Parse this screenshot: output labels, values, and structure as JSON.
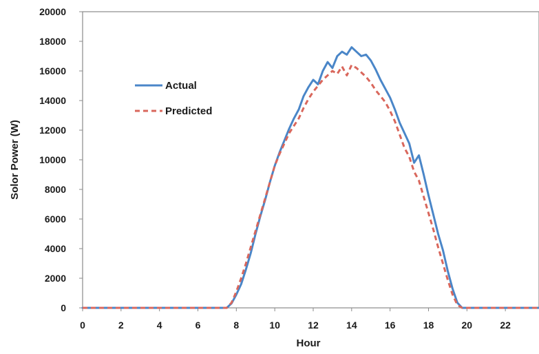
{
  "chart_data": {
    "type": "line",
    "title": "",
    "xlabel": "Hour",
    "ylabel": "Solor Power (W)",
    "xlim": [
      0,
      24
    ],
    "ylim": [
      0,
      20000
    ],
    "x_ticks": [
      0,
      2,
      4,
      6,
      8,
      10,
      12,
      14,
      16,
      18,
      20,
      22
    ],
    "y_ticks": [
      0,
      2000,
      4000,
      6000,
      8000,
      10000,
      12000,
      14000,
      16000,
      18000,
      20000
    ],
    "grid": false,
    "legend_position": "upper-left",
    "series": [
      {
        "name": "Actual",
        "color": "#4a86c8",
        "style": "solid",
        "points": [
          [
            0,
            0
          ],
          [
            7.5,
            0
          ],
          [
            7.75,
            300
          ],
          [
            8,
            900
          ],
          [
            8.25,
            1600
          ],
          [
            8.5,
            2600
          ],
          [
            8.75,
            3700
          ],
          [
            9,
            5000
          ],
          [
            9.25,
            6200
          ],
          [
            9.5,
            7300
          ],
          [
            9.75,
            8500
          ],
          [
            10,
            9600
          ],
          [
            10.25,
            10500
          ],
          [
            10.5,
            11300
          ],
          [
            10.75,
            12100
          ],
          [
            11,
            12800
          ],
          [
            11.25,
            13400
          ],
          [
            11.5,
            14300
          ],
          [
            11.75,
            14900
          ],
          [
            12,
            15400
          ],
          [
            12.25,
            15100
          ],
          [
            12.5,
            16000
          ],
          [
            12.75,
            16600
          ],
          [
            13,
            16200
          ],
          [
            13.25,
            17000
          ],
          [
            13.5,
            17300
          ],
          [
            13.75,
            17100
          ],
          [
            14,
            17600
          ],
          [
            14.25,
            17300
          ],
          [
            14.5,
            17000
          ],
          [
            14.75,
            17100
          ],
          [
            15,
            16700
          ],
          [
            15.25,
            16100
          ],
          [
            15.5,
            15400
          ],
          [
            15.75,
            14800
          ],
          [
            16,
            14200
          ],
          [
            16.25,
            13400
          ],
          [
            16.5,
            12500
          ],
          [
            16.75,
            11800
          ],
          [
            17,
            11100
          ],
          [
            17.25,
            9800
          ],
          [
            17.5,
            10300
          ],
          [
            17.75,
            9000
          ],
          [
            18,
            7600
          ],
          [
            18.25,
            6300
          ],
          [
            18.5,
            5000
          ],
          [
            18.75,
            3900
          ],
          [
            19,
            2500
          ],
          [
            19.25,
            1300
          ],
          [
            19.5,
            350
          ],
          [
            19.75,
            0
          ],
          [
            24,
            0
          ]
        ]
      },
      {
        "name": "Predicted",
        "color": "#d9675c",
        "style": "dashed",
        "points": [
          [
            0,
            0
          ],
          [
            7.5,
            0
          ],
          [
            7.75,
            350
          ],
          [
            8,
            1100
          ],
          [
            8.25,
            2000
          ],
          [
            8.5,
            3000
          ],
          [
            8.75,
            4100
          ],
          [
            9,
            5200
          ],
          [
            9.25,
            6300
          ],
          [
            9.5,
            7400
          ],
          [
            9.75,
            8500
          ],
          [
            10,
            9600
          ],
          [
            10.25,
            10400
          ],
          [
            10.5,
            11100
          ],
          [
            10.75,
            11800
          ],
          [
            11,
            12300
          ],
          [
            11.25,
            12800
          ],
          [
            11.5,
            13500
          ],
          [
            11.75,
            14100
          ],
          [
            12,
            14600
          ],
          [
            12.25,
            15000
          ],
          [
            12.5,
            15400
          ],
          [
            12.75,
            15700
          ],
          [
            13,
            16000
          ],
          [
            13.25,
            15800
          ],
          [
            13.5,
            16300
          ],
          [
            13.75,
            15700
          ],
          [
            14,
            16400
          ],
          [
            14.25,
            16200
          ],
          [
            14.5,
            15900
          ],
          [
            14.75,
            15600
          ],
          [
            15,
            15200
          ],
          [
            15.25,
            14700
          ],
          [
            15.5,
            14300
          ],
          [
            15.75,
            13900
          ],
          [
            16,
            13300
          ],
          [
            16.25,
            12600
          ],
          [
            16.5,
            11700
          ],
          [
            16.75,
            10800
          ],
          [
            17,
            10200
          ],
          [
            17.25,
            9200
          ],
          [
            17.5,
            8600
          ],
          [
            17.75,
            7500
          ],
          [
            18,
            6400
          ],
          [
            18.25,
            5300
          ],
          [
            18.5,
            4100
          ],
          [
            18.75,
            3000
          ],
          [
            19,
            1900
          ],
          [
            19.25,
            900
          ],
          [
            19.5,
            200
          ],
          [
            19.75,
            0
          ],
          [
            24,
            0
          ]
        ]
      }
    ]
  }
}
